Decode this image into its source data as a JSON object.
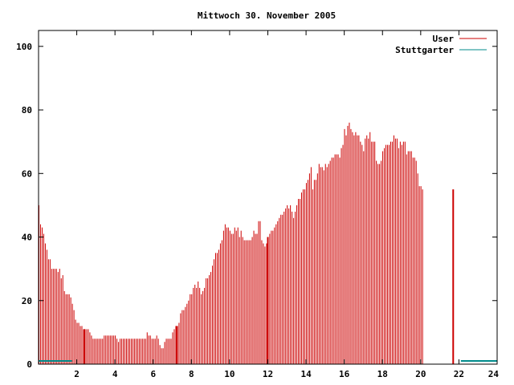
{
  "chart_data": {
    "type": "bar",
    "title": "Mittwoch 30. November 2005",
    "xlabel": "",
    "ylabel": "",
    "xlim": [
      0,
      24
    ],
    "ylim": [
      0,
      105
    ],
    "xticks": [
      2,
      4,
      6,
      8,
      10,
      12,
      14,
      16,
      18,
      20,
      22,
      24
    ],
    "yticks": [
      0,
      20,
      40,
      60,
      80,
      100
    ],
    "grid": false,
    "legend_position": "top-right",
    "colors": {
      "user": "#cc0000",
      "stuttgarter": "#008b8b",
      "axis": "#000000"
    },
    "series": [
      {
        "name": "User",
        "x_start": 0.0,
        "x_step": 0.0833,
        "values": [
          50,
          44,
          43,
          41,
          38,
          36,
          33,
          33,
          30,
          30,
          30,
          30,
          29,
          30,
          27,
          28,
          23,
          22,
          22,
          22,
          21,
          19,
          17,
          14,
          13,
          13,
          12,
          12,
          11,
          11,
          11,
          11,
          10,
          9,
          8,
          8,
          8,
          8,
          8,
          8,
          8,
          9,
          9,
          9,
          9,
          9,
          9,
          9,
          9,
          8,
          7,
          8,
          8,
          8,
          8,
          8,
          8,
          8,
          8,
          8,
          8,
          8,
          8,
          8,
          8,
          8,
          8,
          8,
          10,
          9,
          9,
          8,
          8,
          8,
          9,
          8,
          6,
          5,
          5,
          7,
          8,
          8,
          8,
          8,
          10,
          11,
          12,
          12,
          13,
          16,
          17,
          17,
          18,
          19,
          20,
          22,
          22,
          24,
          25,
          24,
          26,
          24,
          22,
          23,
          24,
          27,
          27,
          28,
          29,
          31,
          33,
          35,
          35,
          36,
          38,
          39,
          42,
          44,
          43,
          43,
          42,
          41,
          41,
          43,
          42,
          43,
          40,
          42,
          40,
          39,
          39,
          39,
          39,
          39,
          40,
          42,
          41,
          41,
          45,
          45,
          39,
          38,
          37,
          38,
          40,
          41,
          42,
          42,
          43,
          44,
          45,
          46,
          47,
          47,
          48,
          49,
          50,
          49,
          50,
          48,
          46,
          48,
          50,
          52,
          52,
          54,
          55,
          55,
          57,
          58,
          60,
          62,
          55,
          58,
          58,
          60,
          63,
          62,
          62,
          61,
          63,
          62,
          63,
          64,
          65,
          65,
          66,
          66,
          66,
          65,
          68,
          69,
          74,
          72,
          75,
          76,
          74,
          73,
          72,
          73,
          72,
          72,
          70,
          69,
          67,
          71,
          72,
          71,
          73,
          70,
          70,
          70,
          64,
          63,
          63,
          64,
          67,
          68,
          69,
          69,
          69,
          70,
          70,
          72,
          71,
          71,
          68,
          70,
          69,
          70,
          70,
          66,
          67,
          67,
          67,
          65,
          65,
          64,
          60,
          56,
          56,
          55
        ]
      },
      {
        "name": "Stuttgarter",
        "segments": [
          {
            "x_from": 0.0,
            "x_to": 1.75,
            "value": 1
          },
          {
            "x_from": 22.1,
            "x_to": 24.0,
            "value": 1
          }
        ]
      }
    ],
    "highlight_bars": [
      2.4,
      7.25,
      12.0,
      21.7
    ]
  }
}
